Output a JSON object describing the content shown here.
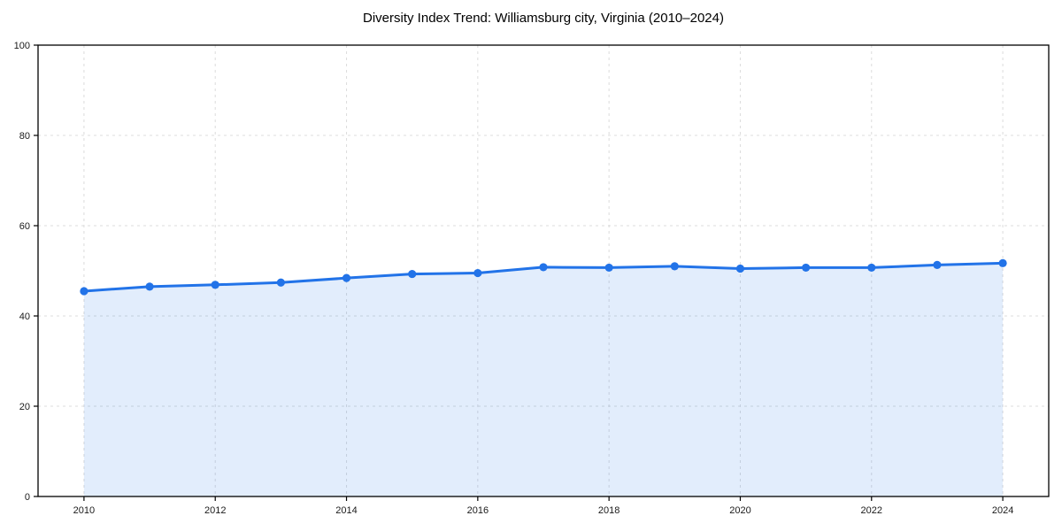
{
  "chart_data": {
    "type": "line",
    "title": "Diversity Index Trend: Williamsburg city, Virginia (2010–2024)",
    "xlabel": "",
    "ylabel": "",
    "x": [
      2010,
      2011,
      2012,
      2013,
      2014,
      2015,
      2016,
      2017,
      2018,
      2019,
      2020,
      2021,
      2022,
      2023,
      2024
    ],
    "series": [
      {
        "name": "Diversity Index",
        "values": [
          45.5,
          46.5,
          46.9,
          47.4,
          48.4,
          49.3,
          49.5,
          50.8,
          50.7,
          51.0,
          50.5,
          50.7,
          50.7,
          51.3,
          51.7
        ]
      }
    ],
    "xlim": [
      2009.3,
      2024.7
    ],
    "ylim": [
      0,
      100
    ],
    "xticks": [
      2010,
      2012,
      2014,
      2016,
      2018,
      2020,
      2022,
      2024
    ],
    "yticks": [
      0,
      20,
      40,
      60,
      80,
      100
    ],
    "grid": true,
    "grid_style": "dashed",
    "legend_position": "none",
    "line_color": "#2273e8",
    "marker_color": "#2273e8",
    "fill_color": "#2273e8",
    "fill_opacity": 0.13,
    "grid_color": "#dcdcdc",
    "axis_color": "#000000",
    "tick_label_color": "#1a1a1a",
    "background_color": "#ffffff"
  }
}
